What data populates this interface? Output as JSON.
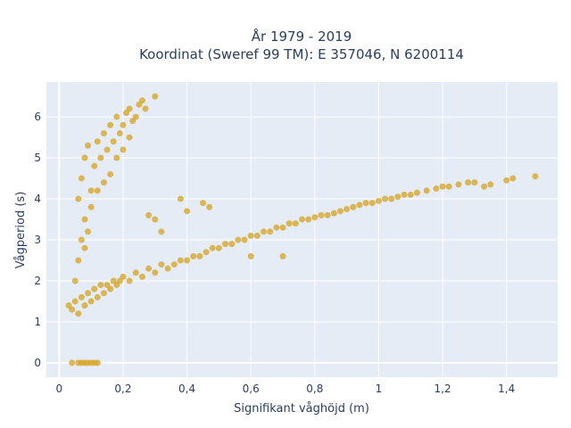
{
  "chart_data": {
    "type": "scatter",
    "title_line1": "År 1979 - 2019",
    "title_line2": "Koordinat (Sweref 99 TM): E 357046, N 6200114",
    "xlabel": "Signifikant våghöjd (m)",
    "ylabel": "Vågperiod (s)",
    "xlim": [
      -0.04,
      1.56
    ],
    "ylim": [
      -0.35,
      6.85
    ],
    "x_ticks": [
      0,
      0.2,
      0.4,
      0.6,
      0.8,
      1,
      1.2,
      1.4
    ],
    "x_tick_labels": [
      "0",
      "0,2",
      "0,4",
      "0,6",
      "0,8",
      "1",
      "1,2",
      "1,4"
    ],
    "y_ticks": [
      0,
      1,
      2,
      3,
      4,
      5,
      6
    ],
    "y_tick_labels": [
      "0",
      "1",
      "2",
      "3",
      "4",
      "5",
      "6"
    ],
    "grid": true,
    "marker_color": "#d4a320",
    "plot_bgcolor": "#e5ecf6",
    "points": [
      [
        0.04,
        0
      ],
      [
        0.06,
        0
      ],
      [
        0.07,
        0
      ],
      [
        0.08,
        0
      ],
      [
        0.09,
        0
      ],
      [
        0.1,
        0
      ],
      [
        0.11,
        0
      ],
      [
        0.12,
        0
      ],
      [
        0.03,
        1.4
      ],
      [
        0.04,
        1.3
      ],
      [
        0.05,
        1.5
      ],
      [
        0.06,
        1.2
      ],
      [
        0.07,
        1.6
      ],
      [
        0.08,
        1.4
      ],
      [
        0.09,
        1.7
      ],
      [
        0.1,
        1.5
      ],
      [
        0.11,
        1.8
      ],
      [
        0.12,
        1.6
      ],
      [
        0.13,
        1.9
      ],
      [
        0.14,
        1.7
      ],
      [
        0.15,
        1.9
      ],
      [
        0.16,
        1.8
      ],
      [
        0.17,
        2.0
      ],
      [
        0.18,
        1.9
      ],
      [
        0.19,
        2.0
      ],
      [
        0.2,
        2.1
      ],
      [
        0.22,
        2.0
      ],
      [
        0.24,
        2.2
      ],
      [
        0.26,
        2.1
      ],
      [
        0.28,
        2.3
      ],
      [
        0.3,
        2.2
      ],
      [
        0.32,
        2.4
      ],
      [
        0.34,
        2.3
      ],
      [
        0.36,
        2.4
      ],
      [
        0.38,
        2.5
      ],
      [
        0.4,
        2.5
      ],
      [
        0.42,
        2.6
      ],
      [
        0.44,
        2.6
      ],
      [
        0.46,
        2.7
      ],
      [
        0.48,
        2.8
      ],
      [
        0.5,
        2.8
      ],
      [
        0.52,
        2.9
      ],
      [
        0.54,
        2.9
      ],
      [
        0.56,
        3.0
      ],
      [
        0.58,
        3.0
      ],
      [
        0.6,
        3.1
      ],
      [
        0.62,
        3.1
      ],
      [
        0.64,
        3.2
      ],
      [
        0.66,
        3.2
      ],
      [
        0.68,
        3.3
      ],
      [
        0.7,
        3.3
      ],
      [
        0.72,
        3.4
      ],
      [
        0.74,
        3.4
      ],
      [
        0.76,
        3.5
      ],
      [
        0.78,
        3.5
      ],
      [
        0.8,
        3.55
      ],
      [
        0.82,
        3.6
      ],
      [
        0.84,
        3.6
      ],
      [
        0.86,
        3.65
      ],
      [
        0.88,
        3.7
      ],
      [
        0.9,
        3.75
      ],
      [
        0.92,
        3.8
      ],
      [
        0.94,
        3.85
      ],
      [
        0.96,
        3.9
      ],
      [
        0.98,
        3.9
      ],
      [
        1.0,
        3.95
      ],
      [
        1.02,
        4.0
      ],
      [
        1.04,
        4.0
      ],
      [
        1.06,
        4.05
      ],
      [
        1.08,
        4.1
      ],
      [
        1.1,
        4.1
      ],
      [
        1.12,
        4.15
      ],
      [
        1.15,
        4.2
      ],
      [
        1.18,
        4.25
      ],
      [
        1.2,
        4.3
      ],
      [
        1.22,
        4.3
      ],
      [
        1.25,
        4.35
      ],
      [
        1.28,
        4.4
      ],
      [
        1.3,
        4.4
      ],
      [
        1.33,
        4.3
      ],
      [
        1.35,
        4.35
      ],
      [
        1.4,
        4.45
      ],
      [
        1.42,
        4.5
      ],
      [
        1.49,
        4.55
      ],
      [
        0.05,
        2.0
      ],
      [
        0.06,
        2.5
      ],
      [
        0.07,
        3.0
      ],
      [
        0.08,
        3.5
      ],
      [
        0.06,
        4.0
      ],
      [
        0.07,
        4.5
      ],
      [
        0.08,
        5.0
      ],
      [
        0.09,
        5.3
      ],
      [
        0.1,
        4.2
      ],
      [
        0.11,
        4.8
      ],
      [
        0.12,
        5.4
      ],
      [
        0.13,
        5.0
      ],
      [
        0.14,
        5.6
      ],
      [
        0.15,
        5.2
      ],
      [
        0.16,
        5.8
      ],
      [
        0.17,
        5.4
      ],
      [
        0.18,
        6.0
      ],
      [
        0.19,
        5.6
      ],
      [
        0.2,
        5.8
      ],
      [
        0.21,
        6.1
      ],
      [
        0.22,
        6.2
      ],
      [
        0.23,
        5.9
      ],
      [
        0.25,
        6.3
      ],
      [
        0.26,
        6.4
      ],
      [
        0.3,
        6.5
      ],
      [
        0.27,
        6.2
      ],
      [
        0.24,
        6.0
      ],
      [
        0.22,
        5.5
      ],
      [
        0.2,
        5.2
      ],
      [
        0.18,
        5.0
      ],
      [
        0.16,
        4.6
      ],
      [
        0.14,
        4.4
      ],
      [
        0.12,
        4.2
      ],
      [
        0.1,
        3.8
      ],
      [
        0.09,
        3.2
      ],
      [
        0.08,
        2.8
      ],
      [
        0.28,
        3.6
      ],
      [
        0.3,
        3.5
      ],
      [
        0.32,
        3.2
      ],
      [
        0.38,
        4.0
      ],
      [
        0.45,
        3.9
      ],
      [
        0.47,
        3.8
      ],
      [
        0.4,
        3.7
      ],
      [
        0.6,
        2.6
      ],
      [
        0.7,
        2.6
      ]
    ]
  }
}
